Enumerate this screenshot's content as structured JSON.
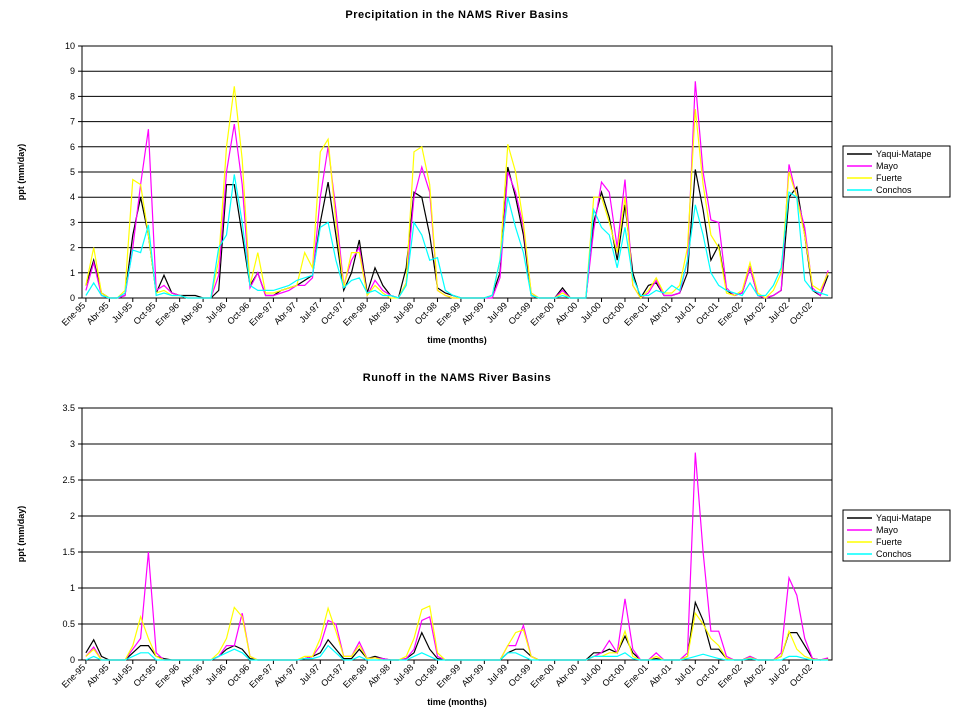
{
  "chart_data": [
    {
      "type": "line",
      "title": "Precipitation in the NAMS River Basins",
      "x_label": "time (months)",
      "y_label": "ppt (mm/day)",
      "categories": [
        "Ene-95",
        null,
        null,
        "Abr-95",
        null,
        null,
        "Jul-95",
        null,
        null,
        "Oct-95",
        null,
        null,
        "Ene-96",
        null,
        null,
        "Abr-96",
        null,
        null,
        "Jul-96",
        null,
        null,
        "Oct-96",
        null,
        null,
        "Ene-97",
        null,
        null,
        "Abr-97",
        null,
        null,
        "Jul-97",
        null,
        null,
        "Oct-97",
        null,
        null,
        "Ene-98",
        null,
        null,
        "Abr-98",
        null,
        null,
        "Jul-98",
        null,
        null,
        "Oct-98",
        null,
        null,
        "Ene-99",
        null,
        null,
        "Abr-99",
        null,
        null,
        "Jul-99",
        null,
        null,
        "Oct-99",
        null,
        null,
        "Ene-00",
        null,
        null,
        "Abr-00",
        null,
        null,
        "Jul-00",
        null,
        null,
        "Oct-00",
        null,
        null,
        "Ene-01",
        null,
        null,
        "Abr-01",
        null,
        null,
        "Jul-01",
        null,
        null,
        "Oct-01",
        null,
        null,
        "Ene-02",
        null,
        null,
        "Abr-02",
        null,
        null,
        "Jul-02",
        null,
        null,
        "Oct-02",
        null,
        null
      ],
      "ylim": [
        0,
        10
      ],
      "yticks": [
        0,
        1,
        2,
        3,
        4,
        5,
        6,
        7,
        8,
        9,
        10
      ],
      "grid": true,
      "series": [
        {
          "name": "Yaqui-Matape",
          "color": "#000000",
          "values": [
            0.5,
            1.5,
            0.2,
            0,
            0,
            0.1,
            2.5,
            4.0,
            2.5,
            0.2,
            0.9,
            0.2,
            0.1,
            0.1,
            0.1,
            0,
            0,
            0.3,
            4.5,
            4.5,
            2.5,
            0.5,
            1.0,
            0.1,
            0.1,
            0.3,
            0.4,
            0.5,
            0.7,
            0.9,
            3.0,
            4.6,
            2.5,
            0.3,
            1.0,
            2.3,
            0.2,
            1.2,
            0.5,
            0.1,
            0,
            1.2,
            4.2,
            4.0,
            2.5,
            0.4,
            0.2,
            0.1,
            0,
            0,
            0,
            0,
            0.1,
            1.0,
            5.2,
            4.0,
            2.5,
            0.1,
            0,
            0,
            0,
            0.4,
            0,
            0,
            0,
            3.0,
            4.2,
            3.2,
            1.5,
            3.7,
            1.0,
            0,
            0.5,
            0.6,
            0.1,
            0.1,
            0.2,
            1.0,
            5.1,
            3.5,
            1.5,
            2.1,
            0.3,
            0.1,
            0.2,
            1.2,
            0.1,
            0,
            0.1,
            0.3,
            4.0,
            4.4,
            2.5,
            0.3,
            0.1,
            0.9
          ]
        },
        {
          "name": "Mayo",
          "color": "#ff00ff",
          "values": [
            0.3,
            1.4,
            0.1,
            0,
            0,
            0.1,
            2.0,
            4.5,
            6.7,
            0.3,
            0.5,
            0.2,
            0.1,
            0,
            0,
            0,
            0,
            0.9,
            5.0,
            6.9,
            4.5,
            0.4,
            1.0,
            0.1,
            0.1,
            0.2,
            0.3,
            0.5,
            0.5,
            0.8,
            4.0,
            6.0,
            3.5,
            0.5,
            1.5,
            2.0,
            0.1,
            0.7,
            0.3,
            0.1,
            0,
            0.6,
            4.0,
            5.2,
            4.2,
            0.3,
            0.1,
            0,
            0,
            0,
            0,
            0,
            0,
            0.8,
            5.0,
            4.2,
            2.8,
            0.2,
            0,
            0,
            0,
            0.3,
            0,
            0,
            0,
            2.7,
            4.6,
            4.2,
            2.0,
            4.7,
            0.5,
            0,
            0.2,
            0.7,
            0.1,
            0.1,
            0.2,
            1.5,
            8.6,
            5.0,
            3.1,
            3.0,
            0.4,
            0.1,
            0.2,
            1.2,
            0.1,
            0,
            0.1,
            0.3,
            5.3,
            4.0,
            2.8,
            0.4,
            0.1,
            1.1
          ]
        },
        {
          "name": "Fuerte",
          "color": "#ffff00",
          "values": [
            0.5,
            2.0,
            0.2,
            0,
            0,
            0.3,
            4.7,
            4.5,
            2.5,
            0.2,
            0.3,
            0.1,
            0.1,
            0,
            0,
            0,
            0,
            1.5,
            6.0,
            8.4,
            5.5,
            0.5,
            1.8,
            0.2,
            0.2,
            0.3,
            0.4,
            0.5,
            1.8,
            1.2,
            5.8,
            6.3,
            3.0,
            0.4,
            1.8,
            1.8,
            0.1,
            0.5,
            0.2,
            0,
            0,
            0.6,
            5.8,
            6.0,
            4.5,
            0.3,
            0.1,
            0,
            0,
            0,
            0,
            0,
            0.1,
            1.5,
            6.1,
            5.0,
            3.0,
            0.2,
            0,
            0,
            0,
            0.2,
            0,
            0,
            0,
            4.0,
            4.0,
            3.0,
            1.8,
            4.0,
            0.5,
            0,
            0.3,
            0.8,
            0.2,
            0.2,
            0.5,
            2.0,
            7.5,
            4.5,
            2.5,
            2.0,
            0.2,
            0.1,
            0.3,
            1.4,
            0.2,
            0,
            0.3,
            1.0,
            5.0,
            4.0,
            2.5,
            0.5,
            0.3,
            1.0
          ]
        },
        {
          "name": "Conchos",
          "color": "#00ffff",
          "values": [
            0.1,
            0.6,
            0.1,
            0,
            0,
            0.2,
            1.9,
            1.8,
            2.9,
            0.1,
            0.2,
            0.1,
            0.1,
            0,
            0,
            0,
            0,
            2.0,
            2.5,
            4.9,
            3.0,
            0.5,
            0.3,
            0.3,
            0.3,
            0.4,
            0.5,
            0.7,
            0.8,
            0.9,
            2.8,
            3.0,
            1.5,
            0.4,
            0.7,
            0.8,
            0.2,
            0.3,
            0.1,
            0.1,
            0,
            0.5,
            3.0,
            2.5,
            1.5,
            1.6,
            0.3,
            0.1,
            0,
            0,
            0,
            0,
            0.1,
            1.5,
            4.0,
            2.8,
            1.8,
            0.1,
            0,
            0,
            0,
            0.1,
            0,
            0,
            0,
            3.5,
            2.8,
            2.5,
            1.2,
            2.8,
            0.8,
            0.1,
            0.1,
            0.3,
            0.2,
            0.5,
            0.3,
            1.5,
            3.7,
            2.5,
            1.0,
            0.5,
            0.3,
            0.2,
            0.1,
            0.6,
            0.1,
            0.1,
            0.5,
            1.2,
            4.2,
            4.0,
            0.7,
            0.3,
            0.2,
            0.1
          ]
        }
      ]
    },
    {
      "type": "line",
      "title": "Runoff in the NAMS River Basins",
      "x_label": "time (months)",
      "y_label": "ppt (mm/day)",
      "categories": [
        "Ene-95",
        null,
        null,
        "Abr-95",
        null,
        null,
        "Jul-95",
        null,
        null,
        "Oct-95",
        null,
        null,
        "Ene-96",
        null,
        null,
        "Abr-96",
        null,
        null,
        "Jul-96",
        null,
        null,
        "Oct-96",
        null,
        null,
        "Ene-97",
        null,
        null,
        "Abr-97",
        null,
        null,
        "Jul-97",
        null,
        null,
        "Oct-97",
        null,
        null,
        "Ene-98",
        null,
        null,
        "Abr-98",
        null,
        null,
        "Jul-98",
        null,
        null,
        "Oct-98",
        null,
        null,
        "Ene-99",
        null,
        null,
        "Abr-99",
        null,
        null,
        "Jul-99",
        null,
        null,
        "Oct-99",
        null,
        null,
        "Ene-00",
        null,
        null,
        "Abr-00",
        null,
        null,
        "Jul-00",
        null,
        null,
        "Oct-00",
        null,
        null,
        "Ene-01",
        null,
        null,
        "Abr-01",
        null,
        null,
        "Jul-01",
        null,
        null,
        "Oct-01",
        null,
        null,
        "Ene-02",
        null,
        null,
        "Abr-02",
        null,
        null,
        "Jul-02",
        null,
        null,
        "Oct-02",
        null,
        null
      ],
      "ylim": [
        0,
        3.5
      ],
      "yticks": [
        0,
        0.5,
        1,
        1.5,
        2,
        2.5,
        3,
        3.5
      ],
      "grid": true,
      "series": [
        {
          "name": "Yaqui-Matape",
          "color": "#000000",
          "values": [
            0.1,
            0.28,
            0.05,
            0,
            0,
            0,
            0.1,
            0.2,
            0.2,
            0.05,
            0.02,
            0,
            0,
            0,
            0,
            0,
            0,
            0.05,
            0.15,
            0.2,
            0.15,
            0.02,
            0,
            0,
            0,
            0,
            0,
            0,
            0.02,
            0.05,
            0.1,
            0.28,
            0.15,
            0.02,
            0.02,
            0.15,
            0.02,
            0.05,
            0.02,
            0,
            0,
            0.02,
            0.1,
            0.38,
            0.15,
            0.02,
            0,
            0,
            0,
            0,
            0,
            0,
            0,
            0,
            0.1,
            0.15,
            0.15,
            0.05,
            0,
            0,
            0,
            0,
            0,
            0,
            0,
            0.1,
            0.1,
            0.15,
            0.1,
            0.33,
            0.1,
            0,
            0,
            0.02,
            0,
            0,
            0,
            0.05,
            0.8,
            0.55,
            0.15,
            0.15,
            0.02,
            0,
            0,
            0.05,
            0,
            0,
            0,
            0.05,
            0.38,
            0.38,
            0.2,
            0.02,
            0,
            0.02
          ]
        },
        {
          "name": "Mayo",
          "color": "#ff00ff",
          "values": [
            0.05,
            0.18,
            0,
            0,
            0,
            0,
            0.15,
            0.3,
            1.5,
            0.1,
            0,
            0,
            0,
            0,
            0,
            0,
            0,
            0.05,
            0.2,
            0.2,
            0.65,
            0.05,
            0,
            0,
            0,
            0,
            0,
            0,
            0.02,
            0.05,
            0.2,
            0.55,
            0.5,
            0.05,
            0.05,
            0.25,
            0.02,
            0.03,
            0.02,
            0,
            0,
            0.02,
            0.15,
            0.55,
            0.6,
            0.05,
            0,
            0,
            0,
            0,
            0,
            0,
            0,
            0,
            0.2,
            0.2,
            0.48,
            0.05,
            0,
            0,
            0,
            0,
            0,
            0,
            0,
            0.05,
            0.1,
            0.27,
            0.1,
            0.85,
            0.15,
            0,
            0,
            0.1,
            0,
            0,
            0,
            0.1,
            2.88,
            1.5,
            0.4,
            0.4,
            0.05,
            0,
            0,
            0.05,
            0,
            0,
            0,
            0.1,
            1.14,
            0.9,
            0.3,
            0.02,
            0,
            0.03
          ]
        },
        {
          "name": "Fuerte",
          "color": "#ffff00",
          "values": [
            0.05,
            0.15,
            0,
            0,
            0,
            0,
            0.2,
            0.6,
            0.3,
            0.05,
            0,
            0,
            0,
            0,
            0,
            0,
            0,
            0.1,
            0.3,
            0.73,
            0.6,
            0.05,
            0,
            0,
            0,
            0,
            0,
            0,
            0.05,
            0.05,
            0.3,
            0.72,
            0.4,
            0.05,
            0.05,
            0.2,
            0.02,
            0.03,
            0,
            0,
            0,
            0.05,
            0.3,
            0.7,
            0.75,
            0.1,
            0,
            0,
            0,
            0,
            0,
            0,
            0,
            0,
            0.2,
            0.38,
            0.42,
            0.05,
            0,
            0,
            0,
            0,
            0,
            0,
            0,
            0.05,
            0.05,
            0.1,
            0.1,
            0.4,
            0.05,
            0,
            0,
            0.05,
            0,
            0,
            0,
            0.05,
            0.65,
            0.5,
            0.3,
            0.2,
            0.02,
            0,
            0,
            0.03,
            0,
            0,
            0,
            0.05,
            0.4,
            0.15,
            0.05,
            0.01,
            0,
            0.01
          ]
        },
        {
          "name": "Conchos",
          "color": "#00ffff",
          "values": [
            0,
            0.05,
            0,
            0,
            0,
            0,
            0.05,
            0.1,
            0.1,
            0,
            0,
            0,
            0,
            0,
            0,
            0,
            0,
            0.05,
            0.1,
            0.15,
            0.1,
            0,
            0,
            0,
            0,
            0,
            0,
            0,
            0.02,
            0.02,
            0.05,
            0.2,
            0.1,
            0,
            0,
            0.05,
            0,
            0,
            0,
            0,
            0,
            0,
            0.05,
            0.1,
            0.05,
            0,
            0,
            0,
            0,
            0,
            0,
            0,
            0,
            0,
            0.1,
            0.1,
            0.05,
            0,
            0,
            0,
            0,
            0,
            0,
            0,
            0,
            0.05,
            0.05,
            0.05,
            0.05,
            0.1,
            0.02,
            0,
            0,
            0,
            0,
            0,
            0,
            0.02,
            0.05,
            0.08,
            0.05,
            0.02,
            0,
            0,
            0,
            0.02,
            0,
            0,
            0,
            0,
            0.05,
            0.05,
            0.02,
            0,
            0,
            0
          ]
        }
      ]
    }
  ]
}
